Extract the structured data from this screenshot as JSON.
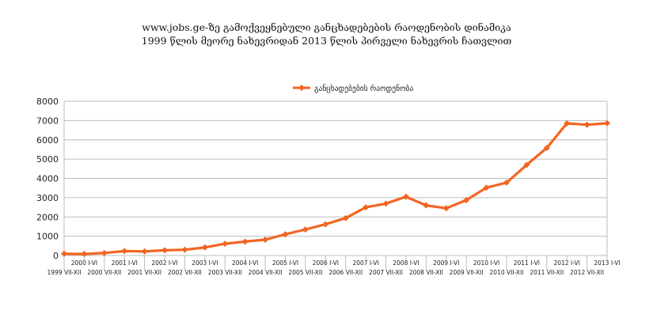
{
  "chart_data": {
    "type": "line",
    "title": "www.jobs.ge-ზე გამოქვეყნებული განცხადებების რაოდენობის დინამიკა",
    "subtitle": "1999 წლის მეორე ნახევრიდან 2013 წლის პირველი ნახევრის ჩათვლით",
    "xlabel": "",
    "ylabel": "",
    "ylim": [
      0,
      8000
    ],
    "yticks": [
      "0",
      "1000",
      "2000",
      "3000",
      "4000",
      "5000",
      "6000",
      "7000",
      "8000"
    ],
    "grid": "horizontal",
    "legend": "top-center",
    "color": "#f26522",
    "categories": [
      "1999 VII-XII",
      "2000 I-VI",
      "2000 VII-XII",
      "2001 I-VI",
      "2001 VII-XII",
      "2002 I-VI",
      "2002 VII-XII",
      "2003 I-VI",
      "2003 VII-XII",
      "2004 I-VI",
      "2004 VII-XII",
      "2005 I-VI",
      "2005 VII-XII",
      "2006 I-VI",
      "2006 VII-XII",
      "2007 I-VI",
      "2007 VII-XII",
      "2008 I-VI",
      "2008 VII-XII",
      "2009 I-VI",
      "2009 VII-XII",
      "2010 I-VI",
      "2010 VII-XII",
      "2011 I-VI",
      "2011 VII-XII",
      "2012 I-VI",
      "2012 VII-XII",
      "2013 I-VI"
    ],
    "series": [
      {
        "name": "განცხადებების რაოდენობა",
        "values": [
          90,
          80,
          130,
          230,
          210,
          270,
          300,
          420,
          610,
          720,
          820,
          1100,
          1350,
          1620,
          1940,
          2500,
          2690,
          3050,
          2600,
          2450,
          2870,
          3520,
          3780,
          4700,
          5580,
          6850,
          6780,
          6860
        ]
      }
    ]
  }
}
